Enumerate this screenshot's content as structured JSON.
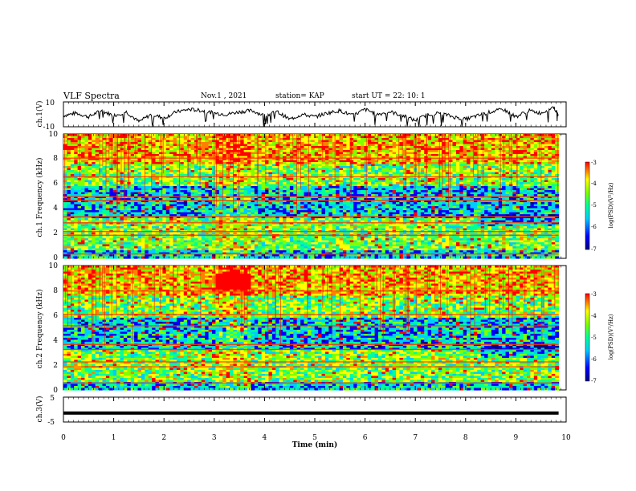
{
  "header": {
    "title": "VLF Spectra",
    "date": "Nov.1 , 2021",
    "station": "station= KAP",
    "start_time": "start UT = 22: 10: 1"
  },
  "chart_data": [
    {
      "type": "line",
      "panel": "ch1-waveform",
      "ylabel": "ch.1(V)",
      "ylim": [
        -10,
        10
      ],
      "yticks": [
        "10",
        "-10"
      ],
      "xlim": [
        0,
        10
      ],
      "series": [
        {
          "x": [
            0,
            0.25,
            0.5,
            0.75,
            1,
            1.25,
            1.5,
            1.75,
            2,
            2.25,
            2.5,
            2.75,
            3,
            3.25,
            3.5,
            3.75,
            4,
            4.25,
            4.5,
            4.75,
            5,
            5.25,
            5.5,
            5.75,
            6,
            6.25,
            6.5,
            6.75,
            7,
            7.25,
            7.5,
            7.75,
            8,
            8.25,
            8.5,
            8.75,
            9,
            9.25,
            9.5,
            9.75,
            9.85
          ],
          "y": [
            -1,
            1,
            -2,
            3,
            -1,
            2,
            -6,
            0,
            -3,
            2,
            4,
            3,
            1,
            0,
            2,
            3,
            -1,
            2,
            -4,
            0,
            -2,
            1,
            3,
            -1,
            4,
            0,
            2,
            -1,
            -5,
            0,
            1,
            -2,
            -4,
            -1,
            2,
            4,
            -2,
            3,
            1,
            6,
            -1
          ]
        }
      ]
    },
    {
      "type": "heatmap",
      "panel": "ch1-spectrogram",
      "ylabel": "ch.1 Frequency (kHz)",
      "ylim": [
        0,
        10
      ],
      "yticks": [
        "0",
        "2",
        "4",
        "6",
        "8",
        "10"
      ],
      "xlim": [
        0,
        9.85
      ],
      "colorbar": {
        "label": "log(PSD)(V²/Hz)",
        "range": [
          -7,
          -3
        ],
        "ticks": [
          "-3",
          "-4",
          "-5",
          "-6",
          "-7"
        ]
      }
    },
    {
      "type": "heatmap",
      "panel": "ch2-spectrogram",
      "ylabel": "ch.2 Frequency (kHz)",
      "ylim": [
        0,
        10
      ],
      "yticks": [
        "0",
        "2",
        "4",
        "6",
        "8",
        "10"
      ],
      "xlim": [
        0,
        9.85
      ],
      "colorbar": {
        "label": "log(PSD)(V²/Hz)",
        "range": [
          -7,
          -3
        ],
        "ticks": [
          "-3",
          "-4",
          "-5",
          "-6",
          "-7"
        ]
      }
    },
    {
      "type": "line",
      "panel": "ch3-waveform",
      "ylabel": "ch.3(V)",
      "ylim": [
        -5,
        5
      ],
      "yticks": [
        "5",
        "-5"
      ],
      "xlim": [
        0,
        10
      ],
      "series": [
        {
          "x": [
            0,
            9.85
          ],
          "y": [
            -1.4,
            -1.4
          ]
        }
      ]
    }
  ],
  "xaxis": {
    "label": "Time (min)",
    "ticks": [
      "0",
      "1",
      "2",
      "3",
      "4",
      "5",
      "6",
      "7",
      "8",
      "9",
      "10"
    ]
  },
  "colors": {
    "colormap": [
      "#000080",
      "#0000ff",
      "#00ccff",
      "#00ff99",
      "#80ff00",
      "#ffff00",
      "#ff8000",
      "#ff0000"
    ],
    "line": "#000000"
  }
}
